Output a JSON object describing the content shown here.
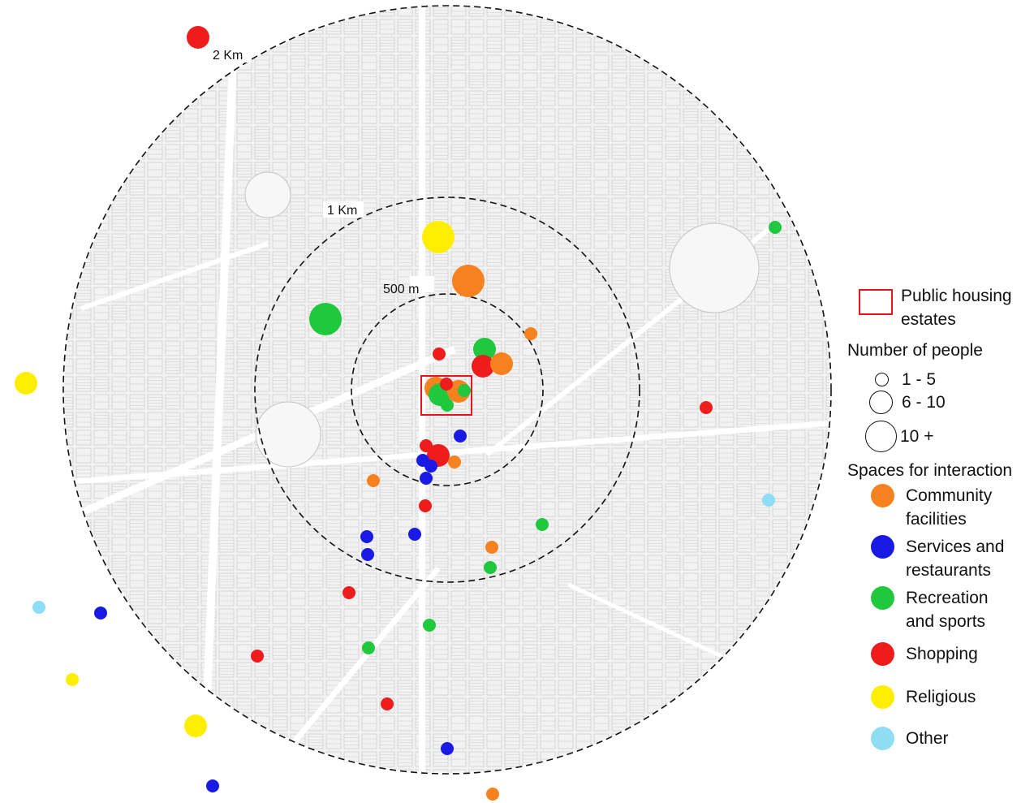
{
  "colors": {
    "community": "#f5821f",
    "services": "#1a1ae6",
    "recreation": "#20c83e",
    "shopping": "#ee1c1c",
    "religious": "#ffee00",
    "other": "#8fdcf5",
    "housing_box": "#e8141b"
  },
  "rings": {
    "r500": "500 m",
    "r1k": "1 Km",
    "r2k": "2 Km"
  },
  "legend": {
    "housing_label": "Public housing estates",
    "people_title": "Number of people",
    "sizes": [
      {
        "label": "1 - 5"
      },
      {
        "label": "6 - 10"
      },
      {
        "label": "10 +"
      }
    ],
    "spaces_title": "Spaces for interaction",
    "categories": [
      {
        "key": "community",
        "label": "Community facilities"
      },
      {
        "key": "services",
        "label": "Services and restaurants"
      },
      {
        "key": "recreation",
        "label": "Recreation and sports"
      },
      {
        "key": "shopping",
        "label": "Shopping"
      },
      {
        "key": "religious",
        "label": "Religious"
      },
      {
        "key": "other",
        "label": "Other"
      }
    ]
  },
  "points": [
    {
      "cat": "shopping",
      "size": 2
    },
    {
      "cat": "religious",
      "size": 3
    },
    {
      "cat": "community",
      "size": 3
    },
    {
      "cat": "recreation",
      "size": 3
    },
    {
      "cat": "religious",
      "size": 2
    },
    {
      "cat": "recreation",
      "size": 1
    },
    {
      "cat": "community",
      "size": 1
    },
    {
      "cat": "shopping",
      "size": 1
    },
    {
      "cat": "recreation",
      "size": 2
    },
    {
      "cat": "shopping",
      "size": 2
    },
    {
      "cat": "community",
      "size": 2
    },
    {
      "cat": "community",
      "size": 2
    },
    {
      "cat": "recreation",
      "size": 2
    },
    {
      "cat": "community",
      "size": 2
    },
    {
      "cat": "shopping",
      "size": 1
    },
    {
      "cat": "recreation",
      "size": 1
    },
    {
      "cat": "recreation",
      "size": 1
    },
    {
      "cat": "shopping",
      "size": 1
    },
    {
      "cat": "services",
      "size": 1
    },
    {
      "cat": "shopping",
      "size": 1
    },
    {
      "cat": "shopping",
      "size": 2
    },
    {
      "cat": "services",
      "size": 1
    },
    {
      "cat": "services",
      "size": 1
    },
    {
      "cat": "community",
      "size": 1
    },
    {
      "cat": "services",
      "size": 1
    },
    {
      "cat": "community",
      "size": 1
    },
    {
      "cat": "shopping",
      "size": 1
    },
    {
      "cat": "other",
      "size": 1
    },
    {
      "cat": "recreation",
      "size": 1
    },
    {
      "cat": "services",
      "size": 1
    },
    {
      "cat": "services",
      "size": 1
    },
    {
      "cat": "community",
      "size": 1
    },
    {
      "cat": "services",
      "size": 1
    },
    {
      "cat": "recreation",
      "size": 1
    },
    {
      "cat": "shopping",
      "size": 1
    },
    {
      "cat": "other",
      "size": 1
    },
    {
      "cat": "services",
      "size": 1
    },
    {
      "cat": "recreation",
      "size": 1
    },
    {
      "cat": "shopping",
      "size": 1
    },
    {
      "cat": "religious",
      "size": 1
    },
    {
      "cat": "recreation",
      "size": 1
    },
    {
      "cat": "religious",
      "size": 2
    },
    {
      "cat": "shopping",
      "size": 1
    },
    {
      "cat": "services",
      "size": 1
    },
    {
      "cat": "services",
      "size": 1
    },
    {
      "cat": "community",
      "size": 1
    }
  ]
}
